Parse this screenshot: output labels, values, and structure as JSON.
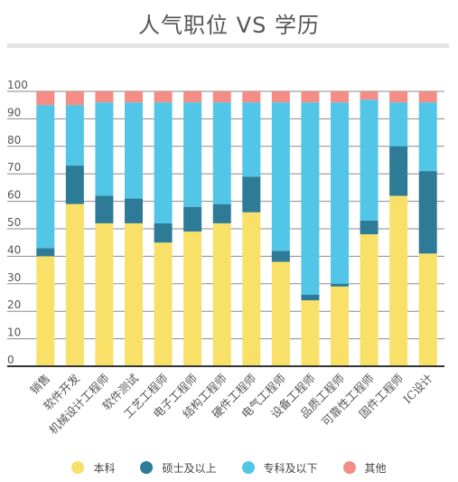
{
  "chart_data": {
    "type": "bar",
    "stacked": true,
    "title": "人气职位 VS 学历",
    "categories": [
      "销售",
      "软件开发",
      "机械设计工程师",
      "软件测试",
      "工艺工程师",
      "电子工程师",
      "结构工程师",
      "硬件工程师",
      "电气工程师",
      "设备工程师",
      "品质工程师",
      "可靠性工程师",
      "固件工程师",
      "IC设计"
    ],
    "series": [
      {
        "name": "本科",
        "color": "#f9e068",
        "values": [
          40,
          59,
          52,
          52,
          45,
          49,
          52,
          56,
          38,
          24,
          29,
          48,
          62,
          41
        ]
      },
      {
        "name": "硕士及以上",
        "color": "#2e7b98",
        "values": [
          3,
          14,
          10,
          9,
          7,
          9,
          7,
          13,
          4,
          2,
          1,
          5,
          18,
          30
        ]
      },
      {
        "name": "专科及以下",
        "color": "#52c6e6",
        "values": [
          52,
          22,
          34,
          35,
          44,
          38,
          37,
          27,
          54,
          70,
          66,
          44,
          16,
          25
        ]
      },
      {
        "name": "其他",
        "color": "#f38d85",
        "values": [
          5,
          5,
          4,
          4,
          4,
          4,
          4,
          4,
          4,
          4,
          4,
          3,
          4,
          4
        ]
      }
    ],
    "ylim": [
      0,
      100
    ],
    "yticks": [
      0,
      10,
      20,
      30,
      40,
      50,
      60,
      70,
      80,
      90,
      100
    ],
    "grid": true,
    "legend_position": "bottom"
  }
}
